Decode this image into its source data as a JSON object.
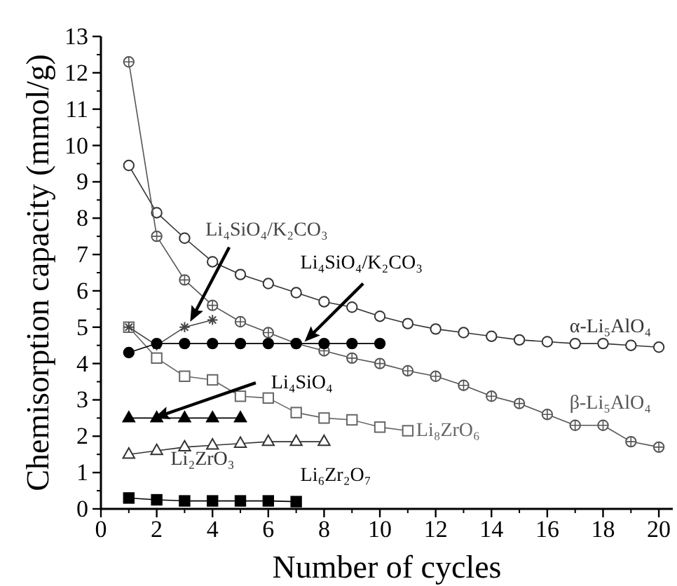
{
  "chart_data": {
    "type": "line",
    "xlabel": "Number of cycles",
    "ylabel": "Chemisorption capacity (mmol/g)",
    "xlim": [
      0,
      20.5
    ],
    "xticks": [
      0,
      2,
      4,
      6,
      8,
      10,
      12,
      14,
      16,
      18,
      20
    ],
    "ylim": [
      0,
      13
    ],
    "yticks": [
      0,
      1,
      2,
      3,
      4,
      5,
      6,
      7,
      8,
      9,
      10,
      11,
      12,
      13
    ],
    "grid": false,
    "line_style": "solid",
    "series": [
      {
        "name": "α-Li₅AlO₄",
        "color": "#333333",
        "marker": "circle",
        "x": [
          1,
          2,
          3,
          4,
          5,
          6,
          7,
          8,
          9,
          10,
          11,
          12,
          13,
          14,
          15,
          16,
          17,
          18,
          19,
          20
        ],
        "values": [
          9.45,
          8.15,
          7.45,
          6.8,
          6.45,
          6.2,
          5.95,
          5.7,
          5.55,
          5.3,
          5.1,
          4.95,
          4.85,
          4.75,
          4.65,
          4.6,
          4.55,
          4.55,
          4.5,
          4.45
        ]
      },
      {
        "name": "β-Li₅AlO₄",
        "color": "#555555",
        "marker": "circle",
        "x": [
          1,
          2,
          3,
          4,
          5,
          6,
          7,
          8,
          9,
          10,
          11,
          12,
          13,
          14,
          15,
          16,
          17,
          18,
          19,
          20
        ],
        "values": [
          12.3,
          7.5,
          6.3,
          5.6,
          5.15,
          4.85,
          4.55,
          4.35,
          4.15,
          4.0,
          3.8,
          3.65,
          3.4,
          3.1,
          2.9,
          2.6,
          2.3,
          2.3,
          1.85,
          1.7
        ]
      },
      {
        "name": "Li₈ZrO₆",
        "color": "#666666",
        "marker": "square",
        "x": [
          1,
          2,
          3,
          4,
          5,
          6,
          7,
          8,
          9,
          10,
          11
        ],
        "values": [
          5.0,
          4.15,
          3.65,
          3.55,
          3.1,
          3.05,
          2.65,
          2.5,
          2.45,
          2.25,
          2.15
        ]
      },
      {
        "name": "Li₄SiO₄/K₂CO₃",
        "color": "#444444",
        "marker": "cross",
        "x": [
          1,
          2,
          3,
          4
        ],
        "values": [
          5.0,
          4.5,
          5.0,
          5.2
        ]
      },
      {
        "name": "Li₄SiO₄/K₂CO₃",
        "color": "#000000",
        "marker": "circle",
        "x": [
          1,
          2,
          3,
          4,
          5,
          6,
          7,
          8,
          9,
          10
        ],
        "values": [
          4.3,
          4.55,
          4.55,
          4.55,
          4.55,
          4.55,
          4.55,
          4.55,
          4.55,
          4.55
        ]
      },
      {
        "name": "Li₄SiO₄",
        "color": "#000000",
        "marker": "triangle",
        "x": [
          1,
          2,
          3,
          4,
          5
        ],
        "values": [
          2.5,
          2.5,
          2.5,
          2.5,
          2.5
        ]
      },
      {
        "name": "Li₂ZrO₃",
        "color": "#333333",
        "marker": "triangle",
        "x": [
          1,
          2,
          3,
          4,
          5,
          6,
          7,
          8
        ],
        "values": [
          1.5,
          1.6,
          1.7,
          1.75,
          1.8,
          1.85,
          1.85,
          1.85
        ]
      },
      {
        "name": "Li₆Zr₂O₇",
        "color": "#000000",
        "marker": "square",
        "x": [
          1,
          2,
          3,
          4,
          5,
          6,
          7
        ],
        "values": [
          0.3,
          0.25,
          0.22,
          0.22,
          0.22,
          0.22,
          0.2
        ]
      }
    ]
  }
}
